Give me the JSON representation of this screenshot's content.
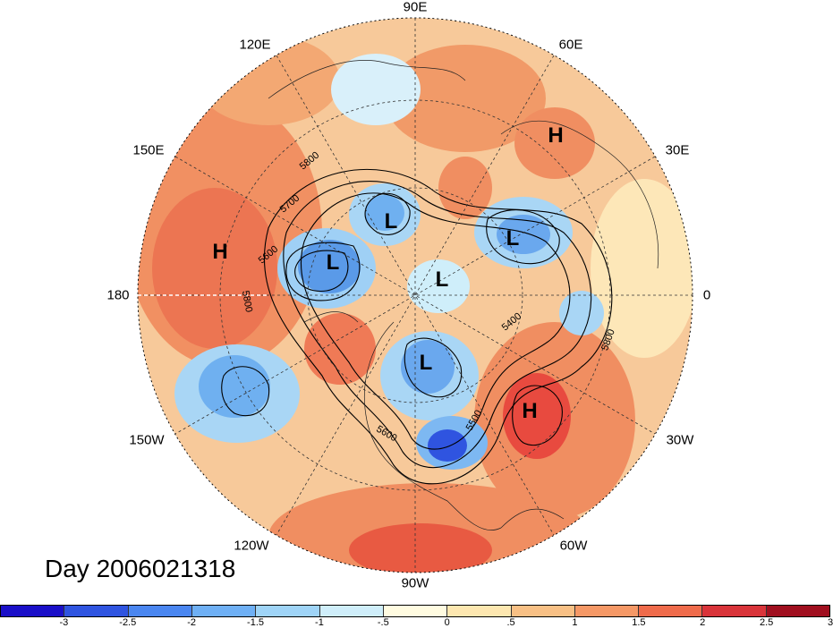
{
  "title": "Day 2006021318",
  "longitude_labels": {
    "n90e": "90E",
    "n60e": "60E",
    "n30e": "30E",
    "n0": "0",
    "n30w": "30W",
    "n60w": "60W",
    "n90w": "90W",
    "n120w": "120W",
    "n150w": "150W",
    "n180": "180",
    "n150e": "150E",
    "n120e": "120E"
  },
  "pressure_centers": [
    {
      "label": "H",
      "type": "high"
    },
    {
      "label": "H",
      "type": "high"
    },
    {
      "label": "H",
      "type": "high"
    },
    {
      "label": "L",
      "type": "low"
    },
    {
      "label": "L",
      "type": "low"
    },
    {
      "label": "L",
      "type": "low"
    },
    {
      "label": "L",
      "type": "low"
    },
    {
      "label": "L",
      "type": "low"
    }
  ],
  "contour_labels": [
    "5800",
    "5700",
    "5600",
    "5800",
    "5400",
    "5800",
    "5500",
    "5600"
  ],
  "colorbar": {
    "colors": [
      "#1a0fc8",
      "#2f54e0",
      "#4a86f0",
      "#6fb0f5",
      "#9fd4f7",
      "#cfeefa",
      "#fffbe0",
      "#fde7b0",
      "#f8c085",
      "#f59866",
      "#ef6b4b",
      "#d9343a",
      "#a00f1f"
    ],
    "ticks": [
      "-3",
      "-2.5",
      "-2",
      "-1.5",
      "-1",
      "-.5",
      "0",
      ".5",
      "1",
      "1.5",
      "2",
      "2.5",
      "3"
    ]
  }
}
